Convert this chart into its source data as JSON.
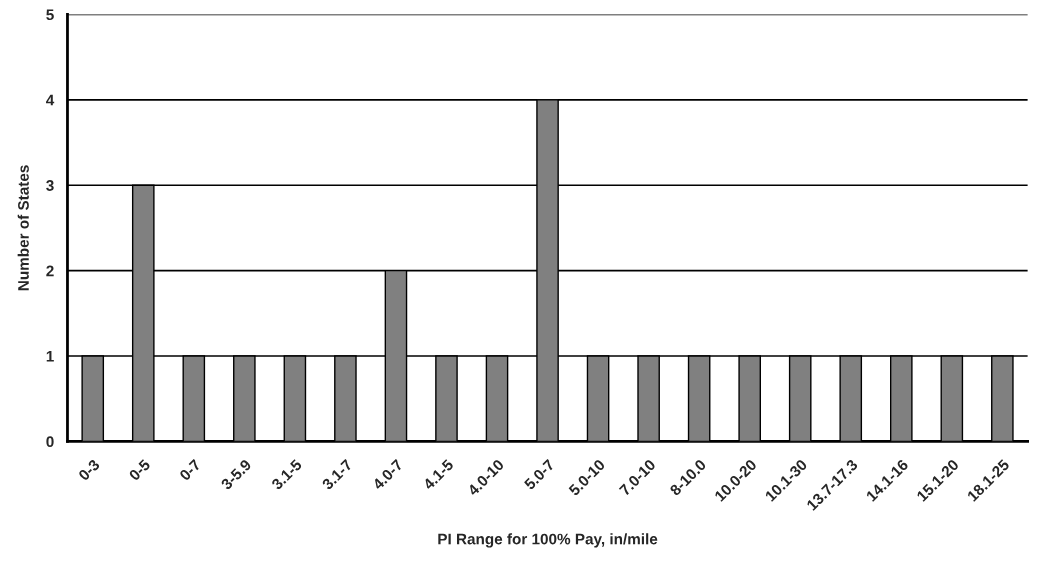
{
  "chart_data": {
    "type": "bar",
    "xlabel": "PI Range for 100% Pay, in/mile",
    "ylabel": "Number of States",
    "categories": [
      "0-3",
      "0-5",
      "0-7",
      "3-5.9",
      "3.1-5",
      "3.1-7",
      "4.0-7",
      "4.1-5",
      "4.0-10",
      "5.0-7",
      "5.0-10",
      "7.0-10",
      "8-10.0",
      "10.0-20",
      "10.1-30",
      "13.7-17.3",
      "14.1-16",
      "15.1-20",
      "18.1-25"
    ],
    "values": [
      1,
      3,
      1,
      1,
      1,
      1,
      2,
      1,
      1,
      4,
      1,
      1,
      1,
      1,
      1,
      1,
      1,
      1,
      1
    ],
    "color": "#808080",
    "ylim": [
      0,
      5
    ],
    "yticks": [
      0,
      1,
      2,
      3,
      4,
      5
    ],
    "grid": "y",
    "legend": false
  }
}
